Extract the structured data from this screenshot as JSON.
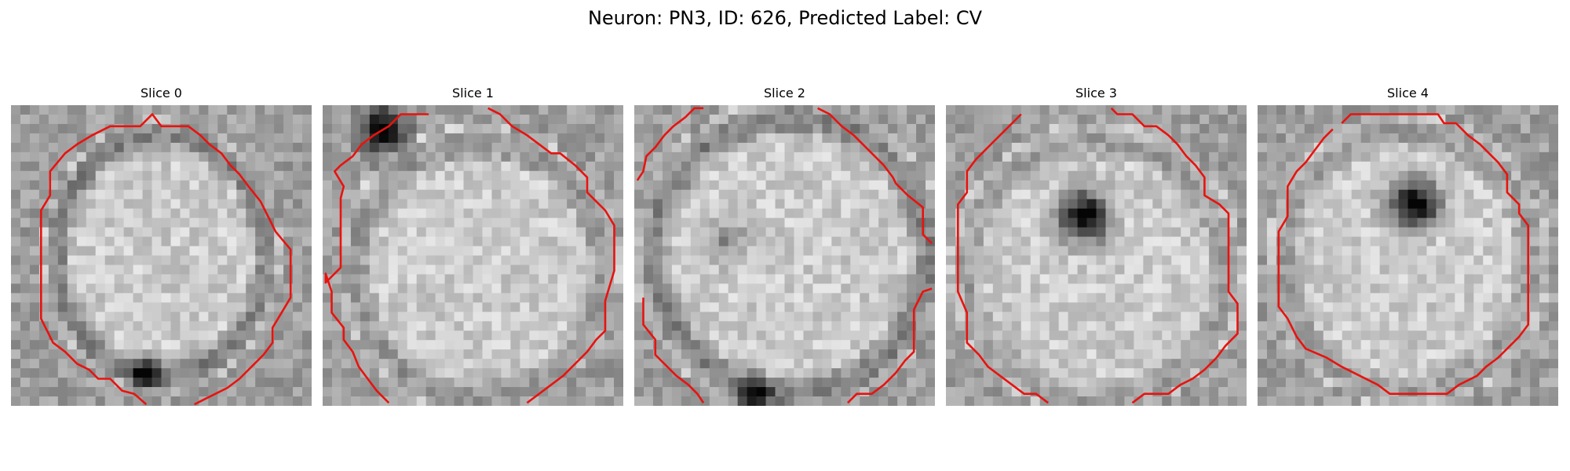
{
  "figure": {
    "title": "Neuron: PN3, ID: 626, Predicted Label: CV"
  },
  "panels": [
    {
      "title": "Slice 0"
    },
    {
      "title": "Slice 1"
    },
    {
      "title": "Slice 2"
    },
    {
      "title": "Slice 3"
    },
    {
      "title": "Slice 4"
    }
  ],
  "colors": {
    "contour": "#e8130f",
    "background": "#ffffff"
  }
}
